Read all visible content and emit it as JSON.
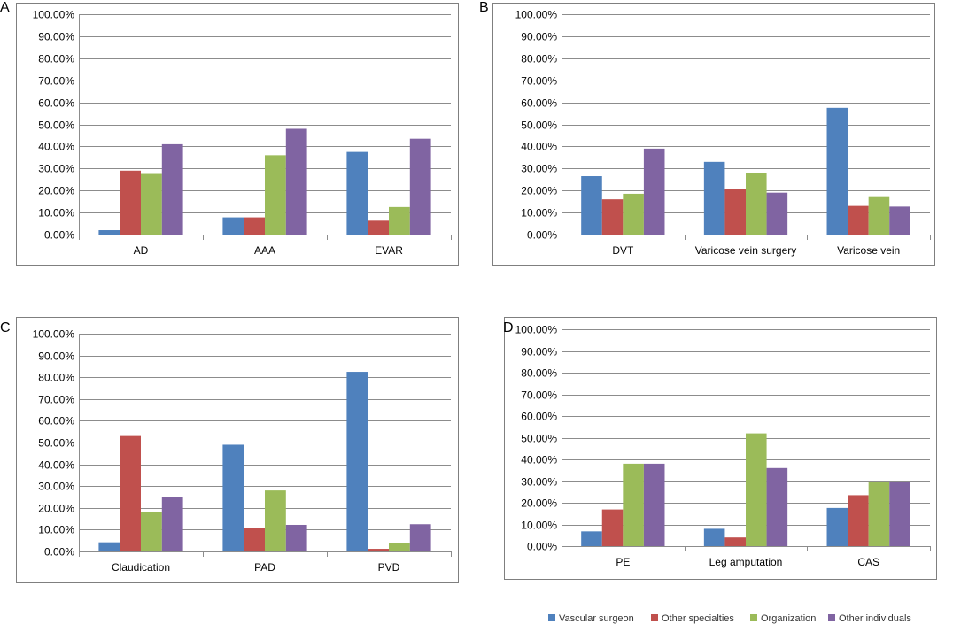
{
  "colors": {
    "vascular_surgeon": "#4F81BD",
    "other_specialties": "#C0504D",
    "organization": "#9BBB59",
    "other_individuals": "#8064A2",
    "grid": "#8C8C8C",
    "frame": "#7F7F7F"
  },
  "legend": {
    "items": [
      {
        "label": "Vascular surgeon",
        "color": "#4F81BD"
      },
      {
        "label": "Other specialties",
        "color": "#C0504D"
      },
      {
        "label": "Organization",
        "color": "#9BBB59"
      },
      {
        "label": "Other individuals",
        "color": "#8064A2"
      }
    ]
  },
  "chart_data": [
    {
      "panel": "A",
      "type": "bar",
      "ylim": [
        0,
        100
      ],
      "yticks": [
        "0.00%",
        "10.00%",
        "20.00%",
        "30.00%",
        "40.00%",
        "50.00%",
        "60.00%",
        "70.00%",
        "80.00%",
        "90.00%",
        "100.00%"
      ],
      "categories": [
        "AD",
        "AAA",
        "EVAR"
      ],
      "series": [
        {
          "name": "Vascular surgeon",
          "values": [
            2.0,
            7.8,
            37.5
          ]
        },
        {
          "name": "Other specialties",
          "values": [
            29.0,
            7.8,
            6.3
          ]
        },
        {
          "name": "Organization",
          "values": [
            27.5,
            36.0,
            12.5
          ]
        },
        {
          "name": "Other individuals",
          "values": [
            41.0,
            48.0,
            43.5
          ]
        }
      ]
    },
    {
      "panel": "B",
      "type": "bar",
      "ylim": [
        0,
        100
      ],
      "yticks": [
        "0.00%",
        "10.00%",
        "20.00%",
        "30.00%",
        "40.00%",
        "50.00%",
        "60.00%",
        "70.00%",
        "80.00%",
        "90.00%",
        "100.00%"
      ],
      "categories": [
        "DVT",
        "Varicose vein surgery",
        "Varicose vein"
      ],
      "series": [
        {
          "name": "Vascular surgeon",
          "values": [
            26.5,
            33.0,
            57.5
          ]
        },
        {
          "name": "Other specialties",
          "values": [
            16.0,
            20.5,
            13.0
          ]
        },
        {
          "name": "Organization",
          "values": [
            18.5,
            28.0,
            17.0
          ]
        },
        {
          "name": "Other individuals",
          "values": [
            39.0,
            19.0,
            12.7
          ]
        }
      ]
    },
    {
      "panel": "C",
      "type": "bar",
      "ylim": [
        0,
        100
      ],
      "yticks": [
        "0.00%",
        "10.00%",
        "20.00%",
        "30.00%",
        "40.00%",
        "50.00%",
        "60.00%",
        "70.00%",
        "80.00%",
        "90.00%",
        "100.00%"
      ],
      "categories": [
        "Claudication",
        "PAD",
        "PVD"
      ],
      "series": [
        {
          "name": "Vascular surgeon",
          "values": [
            4.2,
            49.0,
            82.5
          ]
        },
        {
          "name": "Other specialties",
          "values": [
            53.0,
            10.8,
            1.2
          ]
        },
        {
          "name": "Organization",
          "values": [
            18.0,
            28.0,
            3.7
          ]
        },
        {
          "name": "Other individuals",
          "values": [
            25.0,
            12.2,
            12.5
          ]
        }
      ]
    },
    {
      "panel": "D",
      "type": "bar",
      "ylim": [
        0,
        100
      ],
      "yticks": [
        "0.00%",
        "10.00%",
        "20.00%",
        "30.00%",
        "40.00%",
        "50.00%",
        "60.00%",
        "70.00%",
        "80.00%",
        "90.00%",
        "100.00%"
      ],
      "categories": [
        "PE",
        "Leg amputation",
        "CAS"
      ],
      "series": [
        {
          "name": "Vascular surgeon",
          "values": [
            6.8,
            8.0,
            17.6
          ]
        },
        {
          "name": "Other specialties",
          "values": [
            16.9,
            4.0,
            23.5
          ]
        },
        {
          "name": "Organization",
          "values": [
            38.0,
            52.0,
            29.4
          ]
        },
        {
          "name": "Other individuals",
          "values": [
            38.0,
            36.0,
            29.4
          ]
        }
      ]
    }
  ]
}
